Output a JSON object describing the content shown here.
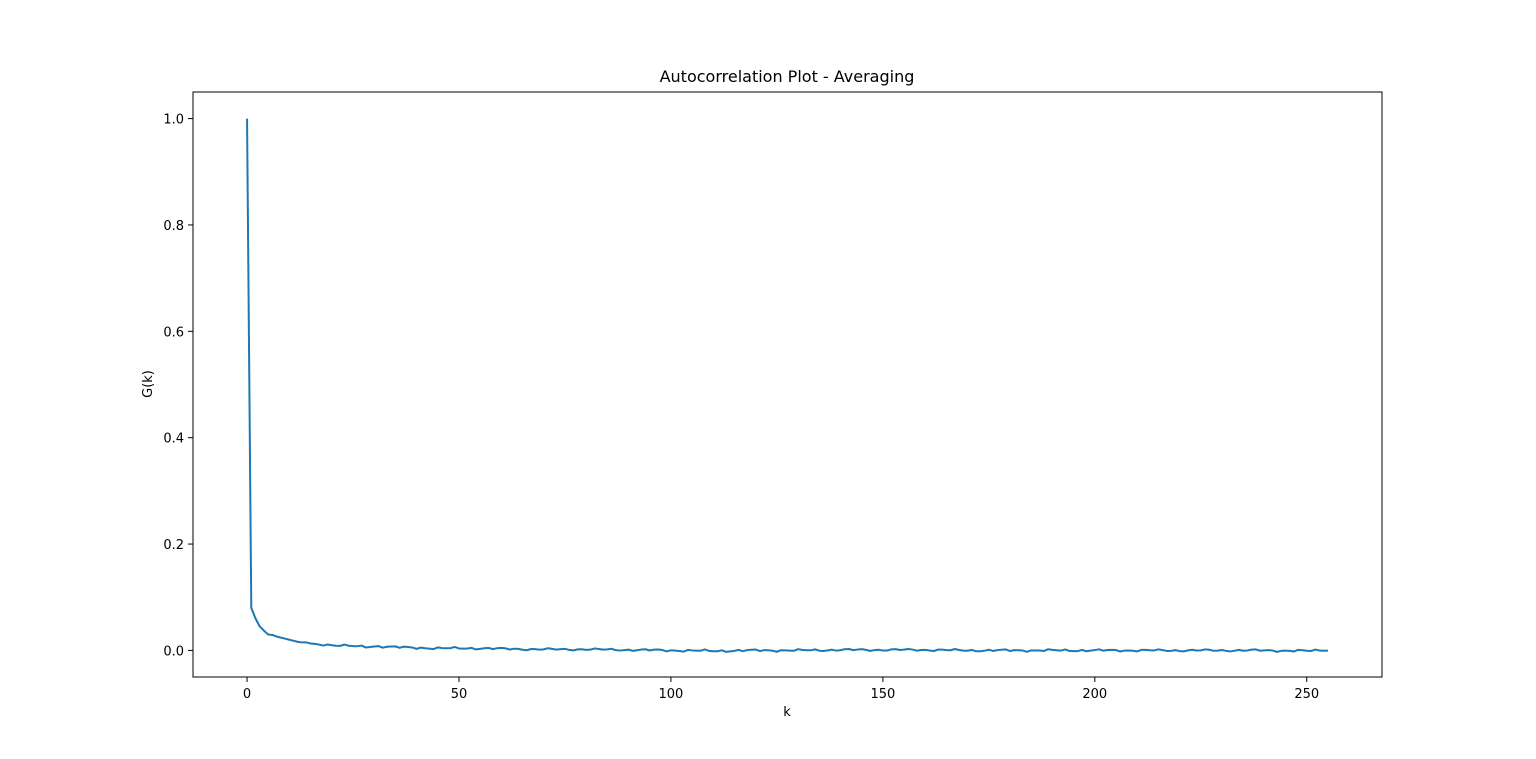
{
  "chart_data": {
    "type": "line",
    "title": "Autocorrelation Plot - Averaging",
    "xlabel": "k",
    "ylabel": "G(k)",
    "xlim": [
      -12.75,
      267.75
    ],
    "ylim": [
      -0.05,
      1.05
    ],
    "xticks": [
      0,
      50,
      100,
      150,
      200,
      250
    ],
    "xtick_labels": [
      "0",
      "50",
      "100",
      "150",
      "200",
      "250"
    ],
    "yticks": [
      0.0,
      0.2,
      0.4,
      0.6,
      0.8,
      1.0
    ],
    "ytick_labels": [
      "0.0",
      "0.2",
      "0.4",
      "0.6",
      "0.8",
      "1.0"
    ],
    "grid": false,
    "series": [
      {
        "color": "#1f77b4",
        "keypoints": [
          [
            0,
            1.0
          ],
          [
            1,
            0.08
          ],
          [
            2,
            0.06
          ],
          [
            3,
            0.045
          ],
          [
            4,
            0.037
          ],
          [
            5,
            0.03
          ],
          [
            6,
            0.029
          ],
          [
            7,
            0.026
          ],
          [
            8,
            0.024
          ],
          [
            9,
            0.022
          ],
          [
            10,
            0.02
          ],
          [
            11,
            0.018
          ],
          [
            12,
            0.016
          ],
          [
            13,
            0.015
          ],
          [
            14,
            0.015
          ],
          [
            15,
            0.012
          ],
          [
            17,
            0.012
          ],
          [
            20,
            0.01
          ],
          [
            22,
            0.009
          ],
          [
            25,
            0.008
          ],
          [
            28,
            0.007
          ],
          [
            30,
            0.008
          ],
          [
            35,
            0.006
          ],
          [
            40,
            0.005
          ],
          [
            45,
            0.004
          ],
          [
            50,
            0.004
          ],
          [
            55,
            0.004
          ],
          [
            60,
            0.003
          ],
          [
            70,
            0.002
          ],
          [
            80,
            0.002
          ],
          [
            90,
            0.001
          ],
          [
            100,
            0.0
          ],
          [
            110,
            -0.001
          ],
          [
            120,
            0.0
          ],
          [
            130,
            0.0
          ],
          [
            140,
            0.001
          ],
          [
            150,
            0.001
          ],
          [
            160,
            0.001
          ],
          [
            170,
            0.0
          ],
          [
            180,
            0.0
          ],
          [
            190,
            0.0
          ],
          [
            200,
            0.0
          ],
          [
            210,
            0.0
          ],
          [
            220,
            0.0
          ],
          [
            230,
            0.0
          ],
          [
            240,
            0.0
          ],
          [
            250,
            -0.001
          ],
          [
            255,
            0.001
          ]
        ]
      }
    ]
  }
}
